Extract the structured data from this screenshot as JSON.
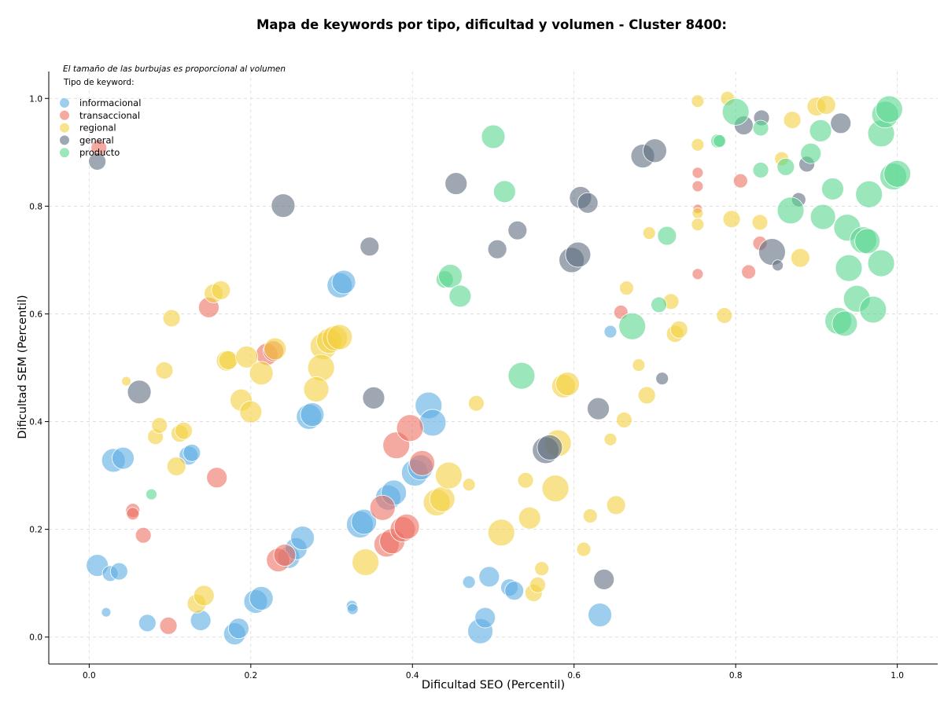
{
  "chart_data": {
    "type": "scatter",
    "title": "Mapa de keywords por tipo, dificultad y volumen - Cluster 8400:",
    "xlabel": "Dificultad SEO (Percentil)",
    "ylabel": "Dificultad SEM (Percentil)",
    "xlim": [
      -0.05,
      1.05
    ],
    "ylim": [
      -0.05,
      1.05
    ],
    "xticks": [
      "0.0",
      "0.2",
      "0.4",
      "0.6",
      "0.8",
      "1.0"
    ],
    "yticks": [
      "0.0",
      "0.2",
      "0.4",
      "0.6",
      "0.8",
      "1.0"
    ],
    "grid": true,
    "note": "El tamaño de las burbujas es proporcional al volumen",
    "legend_title": "Tipo de keyword:",
    "legend_position": "top-left",
    "series": [
      {
        "name": "informacional",
        "color": "#5dade2",
        "points": [
          {
            "x": 0.01,
            "y": 0.133,
            "s": 14
          },
          {
            "x": 0.026,
            "y": 0.118,
            "s": 10
          },
          {
            "x": 0.037,
            "y": 0.122,
            "s": 11
          },
          {
            "x": 0.021,
            "y": 0.046,
            "s": 6
          },
          {
            "x": 0.03,
            "y": 0.328,
            "s": 15
          },
          {
            "x": 0.042,
            "y": 0.332,
            "s": 14
          },
          {
            "x": 0.072,
            "y": 0.026,
            "s": 11
          },
          {
            "x": 0.123,
            "y": 0.337,
            "s": 12
          },
          {
            "x": 0.127,
            "y": 0.342,
            "s": 11
          },
          {
            "x": 0.138,
            "y": 0.031,
            "s": 13
          },
          {
            "x": 0.18,
            "y": 0.006,
            "s": 14
          },
          {
            "x": 0.185,
            "y": 0.016,
            "s": 13
          },
          {
            "x": 0.206,
            "y": 0.066,
            "s": 15
          },
          {
            "x": 0.213,
            "y": 0.072,
            "s": 15
          },
          {
            "x": 0.247,
            "y": 0.148,
            "s": 14
          },
          {
            "x": 0.256,
            "y": 0.164,
            "s": 14
          },
          {
            "x": 0.264,
            "y": 0.184,
            "s": 15
          },
          {
            "x": 0.272,
            "y": 0.409,
            "s": 16
          },
          {
            "x": 0.276,
            "y": 0.413,
            "s": 15
          },
          {
            "x": 0.31,
            "y": 0.653,
            "s": 16
          },
          {
            "x": 0.315,
            "y": 0.659,
            "s": 15
          },
          {
            "x": 0.325,
            "y": 0.058,
            "s": 7
          },
          {
            "x": 0.326,
            "y": 0.052,
            "s": 7
          },
          {
            "x": 0.335,
            "y": 0.209,
            "s": 17
          },
          {
            "x": 0.34,
            "y": 0.214,
            "s": 16
          },
          {
            "x": 0.37,
            "y": 0.259,
            "s": 16
          },
          {
            "x": 0.377,
            "y": 0.268,
            "s": 16
          },
          {
            "x": 0.403,
            "y": 0.305,
            "s": 17
          },
          {
            "x": 0.41,
            "y": 0.315,
            "s": 16
          },
          {
            "x": 0.42,
            "y": 0.43,
            "s": 17
          },
          {
            "x": 0.425,
            "y": 0.398,
            "s": 17
          },
          {
            "x": 0.47,
            "y": 0.102,
            "s": 8
          },
          {
            "x": 0.484,
            "y": 0.011,
            "s": 16
          },
          {
            "x": 0.49,
            "y": 0.036,
            "s": 13
          },
          {
            "x": 0.495,
            "y": 0.112,
            "s": 13
          },
          {
            "x": 0.52,
            "y": 0.092,
            "s": 11
          },
          {
            "x": 0.526,
            "y": 0.086,
            "s": 12
          },
          {
            "x": 0.645,
            "y": 0.567,
            "s": 8
          },
          {
            "x": 0.632,
            "y": 0.041,
            "s": 15
          }
        ]
      },
      {
        "name": "transaccional",
        "color": "#ec7063",
        "points": [
          {
            "x": 0.012,
            "y": 0.908,
            "s": 10
          },
          {
            "x": 0.054,
            "y": 0.235,
            "s": 9
          },
          {
            "x": 0.054,
            "y": 0.229,
            "s": 8
          },
          {
            "x": 0.067,
            "y": 0.189,
            "s": 10
          },
          {
            "x": 0.098,
            "y": 0.021,
            "s": 11
          },
          {
            "x": 0.148,
            "y": 0.612,
            "s": 13
          },
          {
            "x": 0.158,
            "y": 0.296,
            "s": 13
          },
          {
            "x": 0.22,
            "y": 0.525,
            "s": 14
          },
          {
            "x": 0.228,
            "y": 0.531,
            "s": 13
          },
          {
            "x": 0.234,
            "y": 0.143,
            "s": 15
          },
          {
            "x": 0.242,
            "y": 0.152,
            "s": 14
          },
          {
            "x": 0.363,
            "y": 0.24,
            "s": 16
          },
          {
            "x": 0.368,
            "y": 0.172,
            "s": 16
          },
          {
            "x": 0.375,
            "y": 0.178,
            "s": 16
          },
          {
            "x": 0.38,
            "y": 0.356,
            "s": 17
          },
          {
            "x": 0.388,
            "y": 0.2,
            "s": 16
          },
          {
            "x": 0.393,
            "y": 0.205,
            "s": 16
          },
          {
            "x": 0.397,
            "y": 0.388,
            "s": 17
          },
          {
            "x": 0.412,
            "y": 0.323,
            "s": 16
          },
          {
            "x": 0.658,
            "y": 0.603,
            "s": 9
          },
          {
            "x": 0.753,
            "y": 0.862,
            "s": 7
          },
          {
            "x": 0.753,
            "y": 0.837,
            "s": 7
          },
          {
            "x": 0.753,
            "y": 0.795,
            "s": 6
          },
          {
            "x": 0.753,
            "y": 0.674,
            "s": 7
          },
          {
            "x": 0.806,
            "y": 0.847,
            "s": 9
          },
          {
            "x": 0.816,
            "y": 0.678,
            "s": 9
          },
          {
            "x": 0.83,
            "y": 0.731,
            "s": 9
          }
        ]
      },
      {
        "name": "regional",
        "color": "#f4d03f",
        "points": [
          {
            "x": 0.046,
            "y": 0.475,
            "s": 6
          },
          {
            "x": 0.082,
            "y": 0.372,
            "s": 10
          },
          {
            "x": 0.087,
            "y": 0.393,
            "s": 10
          },
          {
            "x": 0.093,
            "y": 0.495,
            "s": 11
          },
          {
            "x": 0.102,
            "y": 0.592,
            "s": 11
          },
          {
            "x": 0.108,
            "y": 0.317,
            "s": 12
          },
          {
            "x": 0.112,
            "y": 0.378,
            "s": 11
          },
          {
            "x": 0.117,
            "y": 0.383,
            "s": 11
          },
          {
            "x": 0.133,
            "y": 0.062,
            "s": 12
          },
          {
            "x": 0.142,
            "y": 0.077,
            "s": 13
          },
          {
            "x": 0.154,
            "y": 0.638,
            "s": 12
          },
          {
            "x": 0.163,
            "y": 0.644,
            "s": 12
          },
          {
            "x": 0.17,
            "y": 0.513,
            "s": 13
          },
          {
            "x": 0.172,
            "y": 0.514,
            "s": 12
          },
          {
            "x": 0.188,
            "y": 0.44,
            "s": 14
          },
          {
            "x": 0.195,
            "y": 0.52,
            "s": 14
          },
          {
            "x": 0.2,
            "y": 0.418,
            "s": 14
          },
          {
            "x": 0.213,
            "y": 0.49,
            "s": 15
          },
          {
            "x": 0.23,
            "y": 0.535,
            "s": 14
          },
          {
            "x": 0.29,
            "y": 0.54,
            "s": 17
          },
          {
            "x": 0.287,
            "y": 0.5,
            "s": 17
          },
          {
            "x": 0.281,
            "y": 0.46,
            "s": 16
          },
          {
            "x": 0.297,
            "y": 0.55,
            "s": 16
          },
          {
            "x": 0.304,
            "y": 0.555,
            "s": 16
          },
          {
            "x": 0.31,
            "y": 0.557,
            "s": 16
          },
          {
            "x": 0.342,
            "y": 0.139,
            "s": 17
          },
          {
            "x": 0.43,
            "y": 0.25,
            "s": 17
          },
          {
            "x": 0.437,
            "y": 0.256,
            "s": 16
          },
          {
            "x": 0.445,
            "y": 0.3,
            "s": 17
          },
          {
            "x": 0.47,
            "y": 0.283,
            "s": 8
          },
          {
            "x": 0.479,
            "y": 0.434,
            "s": 10
          },
          {
            "x": 0.51,
            "y": 0.194,
            "s": 17
          },
          {
            "x": 0.54,
            "y": 0.291,
            "s": 10
          },
          {
            "x": 0.545,
            "y": 0.221,
            "s": 14
          },
          {
            "x": 0.55,
            "y": 0.082,
            "s": 11
          },
          {
            "x": 0.555,
            "y": 0.097,
            "s": 10
          },
          {
            "x": 0.56,
            "y": 0.127,
            "s": 9
          },
          {
            "x": 0.577,
            "y": 0.276,
            "s": 17
          },
          {
            "x": 0.58,
            "y": 0.36,
            "s": 17
          },
          {
            "x": 0.587,
            "y": 0.466,
            "s": 15
          },
          {
            "x": 0.592,
            "y": 0.47,
            "s": 15
          },
          {
            "x": 0.612,
            "y": 0.163,
            "s": 9
          },
          {
            "x": 0.62,
            "y": 0.225,
            "s": 9
          },
          {
            "x": 0.645,
            "y": 0.367,
            "s": 8
          },
          {
            "x": 0.652,
            "y": 0.245,
            "s": 12
          },
          {
            "x": 0.662,
            "y": 0.403,
            "s": 10
          },
          {
            "x": 0.665,
            "y": 0.648,
            "s": 9
          },
          {
            "x": 0.68,
            "y": 0.505,
            "s": 8
          },
          {
            "x": 0.69,
            "y": 0.449,
            "s": 11
          },
          {
            "x": 0.693,
            "y": 0.75,
            "s": 8
          },
          {
            "x": 0.72,
            "y": 0.623,
            "s": 10
          },
          {
            "x": 0.725,
            "y": 0.563,
            "s": 11
          },
          {
            "x": 0.73,
            "y": 0.571,
            "s": 11
          },
          {
            "x": 0.753,
            "y": 0.995,
            "s": 8
          },
          {
            "x": 0.753,
            "y": 0.914,
            "s": 8
          },
          {
            "x": 0.753,
            "y": 0.787,
            "s": 7
          },
          {
            "x": 0.753,
            "y": 0.766,
            "s": 8
          },
          {
            "x": 0.786,
            "y": 0.597,
            "s": 10
          },
          {
            "x": 0.79,
            "y": 1.0,
            "s": 9
          },
          {
            "x": 0.795,
            "y": 0.776,
            "s": 11
          },
          {
            "x": 0.83,
            "y": 0.77,
            "s": 10
          },
          {
            "x": 0.857,
            "y": 0.888,
            "s": 9
          },
          {
            "x": 0.87,
            "y": 0.96,
            "s": 11
          },
          {
            "x": 0.88,
            "y": 0.704,
            "s": 12
          },
          {
            "x": 0.9,
            "y": 0.985,
            "s": 12
          },
          {
            "x": 0.912,
            "y": 0.988,
            "s": 12
          }
        ]
      },
      {
        "name": "general",
        "color": "#5d6d7e",
        "points": [
          {
            "x": 0.01,
            "y": 0.883,
            "s": 11
          },
          {
            "x": 0.062,
            "y": 0.455,
            "s": 15
          },
          {
            "x": 0.24,
            "y": 0.801,
            "s": 15
          },
          {
            "x": 0.347,
            "y": 0.725,
            "s": 12
          },
          {
            "x": 0.352,
            "y": 0.444,
            "s": 14
          },
          {
            "x": 0.454,
            "y": 0.842,
            "s": 14
          },
          {
            "x": 0.505,
            "y": 0.72,
            "s": 12
          },
          {
            "x": 0.53,
            "y": 0.755,
            "s": 12
          },
          {
            "x": 0.565,
            "y": 0.347,
            "s": 17
          },
          {
            "x": 0.57,
            "y": 0.352,
            "s": 16
          },
          {
            "x": 0.597,
            "y": 0.7,
            "s": 16
          },
          {
            "x": 0.605,
            "y": 0.71,
            "s": 16
          },
          {
            "x": 0.608,
            "y": 0.816,
            "s": 14
          },
          {
            "x": 0.617,
            "y": 0.806,
            "s": 13
          },
          {
            "x": 0.63,
            "y": 0.424,
            "s": 14
          },
          {
            "x": 0.637,
            "y": 0.107,
            "s": 13
          },
          {
            "x": 0.685,
            "y": 0.893,
            "s": 15
          },
          {
            "x": 0.7,
            "y": 0.903,
            "s": 15
          },
          {
            "x": 0.709,
            "y": 0.48,
            "s": 8
          },
          {
            "x": 0.81,
            "y": 0.95,
            "s": 12
          },
          {
            "x": 0.832,
            "y": 0.964,
            "s": 10
          },
          {
            "x": 0.845,
            "y": 0.715,
            "s": 17
          },
          {
            "x": 0.852,
            "y": 0.69,
            "s": 7
          },
          {
            "x": 0.878,
            "y": 0.812,
            "s": 9
          },
          {
            "x": 0.888,
            "y": 0.878,
            "s": 10
          },
          {
            "x": 0.93,
            "y": 0.954,
            "s": 13
          }
        ]
      },
      {
        "name": "producto",
        "color": "#58d68d",
        "points": [
          {
            "x": 0.077,
            "y": 0.265,
            "s": 7
          },
          {
            "x": 0.44,
            "y": 0.664,
            "s": 11
          },
          {
            "x": 0.447,
            "y": 0.67,
            "s": 15
          },
          {
            "x": 0.459,
            "y": 0.633,
            "s": 14
          },
          {
            "x": 0.5,
            "y": 0.929,
            "s": 15
          },
          {
            "x": 0.514,
            "y": 0.827,
            "s": 14
          },
          {
            "x": 0.535,
            "y": 0.485,
            "s": 17
          },
          {
            "x": 0.672,
            "y": 0.577,
            "s": 17
          },
          {
            "x": 0.705,
            "y": 0.617,
            "s": 10
          },
          {
            "x": 0.715,
            "y": 0.745,
            "s": 12
          },
          {
            "x": 0.778,
            "y": 0.921,
            "s": 9
          },
          {
            "x": 0.78,
            "y": 0.921,
            "s": 8
          },
          {
            "x": 0.8,
            "y": 0.975,
            "s": 17
          },
          {
            "x": 0.831,
            "y": 0.945,
            "s": 10
          },
          {
            "x": 0.831,
            "y": 0.867,
            "s": 10
          },
          {
            "x": 0.862,
            "y": 0.873,
            "s": 11
          },
          {
            "x": 0.868,
            "y": 0.792,
            "s": 17
          },
          {
            "x": 0.893,
            "y": 0.898,
            "s": 13
          },
          {
            "x": 0.905,
            "y": 0.94,
            "s": 14
          },
          {
            "x": 0.908,
            "y": 0.78,
            "s": 16
          },
          {
            "x": 0.92,
            "y": 0.832,
            "s": 14
          },
          {
            "x": 0.927,
            "y": 0.587,
            "s": 17
          },
          {
            "x": 0.935,
            "y": 0.582,
            "s": 16
          },
          {
            "x": 0.938,
            "y": 0.76,
            "s": 17
          },
          {
            "x": 0.94,
            "y": 0.685,
            "s": 17
          },
          {
            "x": 0.95,
            "y": 0.628,
            "s": 17
          },
          {
            "x": 0.958,
            "y": 0.737,
            "s": 17
          },
          {
            "x": 0.963,
            "y": 0.735,
            "s": 16
          },
          {
            "x": 0.965,
            "y": 0.822,
            "s": 17
          },
          {
            "x": 0.97,
            "y": 0.608,
            "s": 17
          },
          {
            "x": 0.98,
            "y": 0.694,
            "s": 17
          },
          {
            "x": 0.98,
            "y": 0.935,
            "s": 17
          },
          {
            "x": 0.985,
            "y": 0.97,
            "s": 17
          },
          {
            "x": 0.99,
            "y": 0.98,
            "s": 17
          },
          {
            "x": 0.995,
            "y": 0.855,
            "s": 17
          },
          {
            "x": 1.0,
            "y": 0.86,
            "s": 17
          }
        ]
      }
    ]
  }
}
